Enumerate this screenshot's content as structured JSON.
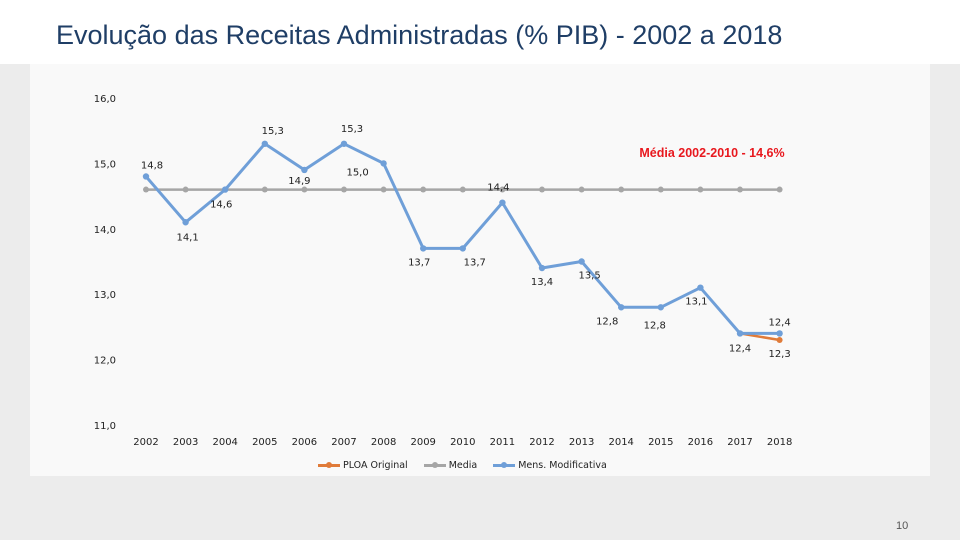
{
  "page": {
    "title": "Evolução das Receitas Administradas (% PIB) - 2002 a 2018",
    "page_number": "10"
  },
  "chart_data": {
    "type": "line",
    "title": "Evolução das Receitas Administradas (% PIB) - 2002 a 2018",
    "xlabel": "",
    "ylabel": "",
    "categories": [
      "2002",
      "2003",
      "2004",
      "2005",
      "2006",
      "2007",
      "2008",
      "2009",
      "2010",
      "2011",
      "2012",
      "2013",
      "2014",
      "2015",
      "2016",
      "2017",
      "2018"
    ],
    "ylim": [
      11.0,
      16.0
    ],
    "yticks": [
      11.0,
      12.0,
      13.0,
      14.0,
      15.0,
      16.0
    ],
    "ytick_labels": [
      "11,0",
      "12,0",
      "13,0",
      "14,0",
      "15,0",
      "16,0"
    ],
    "grid": false,
    "legend_position": "bottom",
    "series": [
      {
        "name": "PLOA Original",
        "color": "#e07b39",
        "values": [
          null,
          null,
          null,
          null,
          null,
          null,
          null,
          null,
          null,
          null,
          null,
          null,
          null,
          null,
          null,
          12.4,
          12.3
        ],
        "labels": [
          null,
          null,
          null,
          null,
          null,
          null,
          null,
          null,
          null,
          null,
          null,
          null,
          null,
          null,
          null,
          null,
          "12,3"
        ]
      },
      {
        "name": "Media",
        "color": "#a6a6a6",
        "values": [
          14.6,
          14.6,
          14.6,
          14.6,
          14.6,
          14.6,
          14.6,
          14.6,
          14.6,
          14.6,
          14.6,
          14.6,
          14.6,
          14.6,
          14.6,
          14.6,
          14.6
        ],
        "labels": []
      },
      {
        "name": "Mens. Modificativa",
        "color": "#6f9fd8",
        "values": [
          14.8,
          14.1,
          14.6,
          15.3,
          14.9,
          15.3,
          15.0,
          13.7,
          13.7,
          14.4,
          13.4,
          13.5,
          12.8,
          12.8,
          13.1,
          12.4,
          12.4
        ],
        "labels": [
          "14,8",
          "14,1",
          "14,6",
          "15,3",
          "14,9",
          "15,3",
          "15,0",
          "13,7",
          "13,7",
          "14,4",
          "13,4",
          "13,5",
          "12,8",
          "12,8",
          "13,1",
          "12,4",
          "12,4"
        ]
      }
    ],
    "annotations": [
      {
        "text": "Média 2002-2010 - 14,6%",
        "color": "#e8181e"
      }
    ]
  }
}
